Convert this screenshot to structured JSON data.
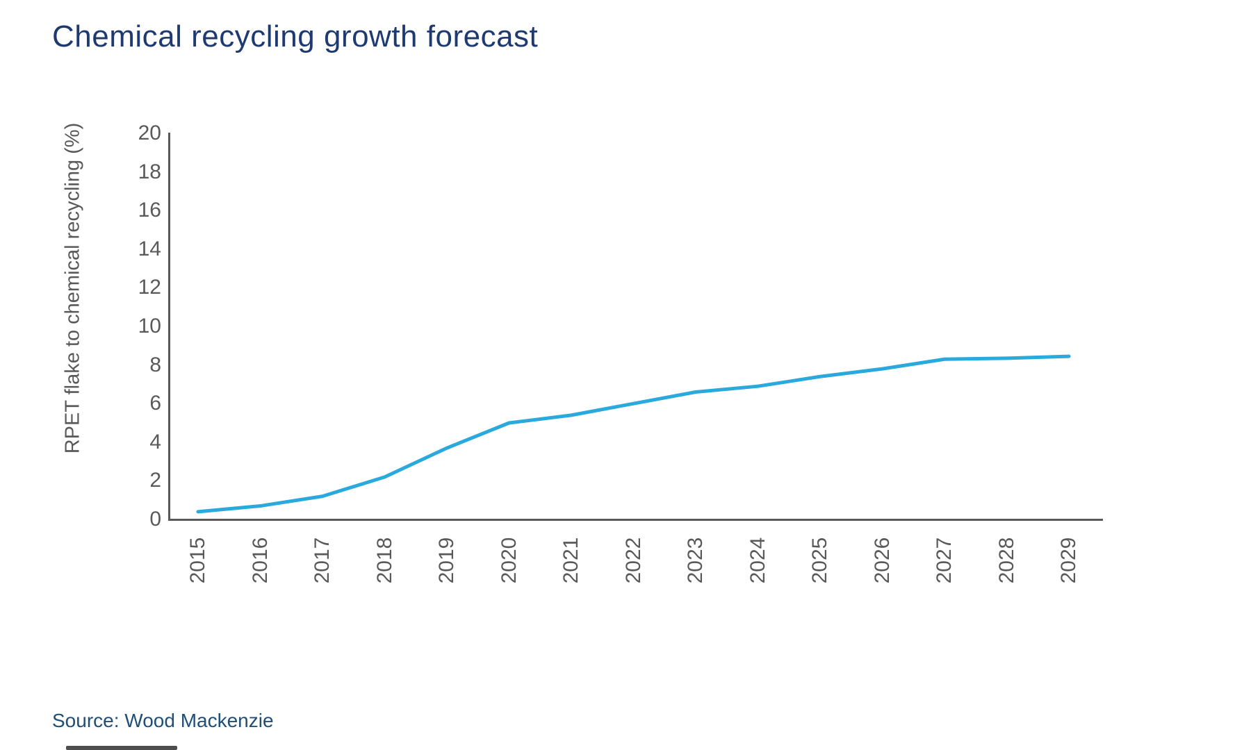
{
  "title": {
    "text": "Chemical recycling growth forecast"
  },
  "source": {
    "text": "Source: Wood Mackenzie"
  },
  "colors": {
    "title_text": "#1f3a70",
    "source_text": "#1f4e79",
    "axis": "#595959",
    "tick_text": "#595959",
    "line": "#29a9dc",
    "background": "#ffffff"
  },
  "chart_data": {
    "type": "line",
    "title": "Chemical recycling growth forecast",
    "xlabel": "",
    "ylabel": "RPET flake to chemical recycling (%)",
    "categories": [
      "2015",
      "2016",
      "2017",
      "2018",
      "2019",
      "2020",
      "2021",
      "2022",
      "2023",
      "2024",
      "2025",
      "2026",
      "2027",
      "2028",
      "2029"
    ],
    "series": [
      {
        "name": "RPET flake to chemical recycling (%)",
        "values": [
          0.4,
          0.7,
          1.2,
          2.2,
          3.7,
          5.0,
          5.4,
          6.0,
          6.6,
          6.9,
          7.4,
          7.8,
          8.3,
          8.35,
          8.45
        ]
      }
    ],
    "ylim": [
      0,
      20
    ],
    "ytick_step": 2,
    "yticks": [
      0,
      2,
      4,
      6,
      8,
      10,
      12,
      14,
      16,
      18,
      20
    ],
    "grid": false,
    "legend_position": "none",
    "line_color": "#29a9dc",
    "line_width": 5
  }
}
